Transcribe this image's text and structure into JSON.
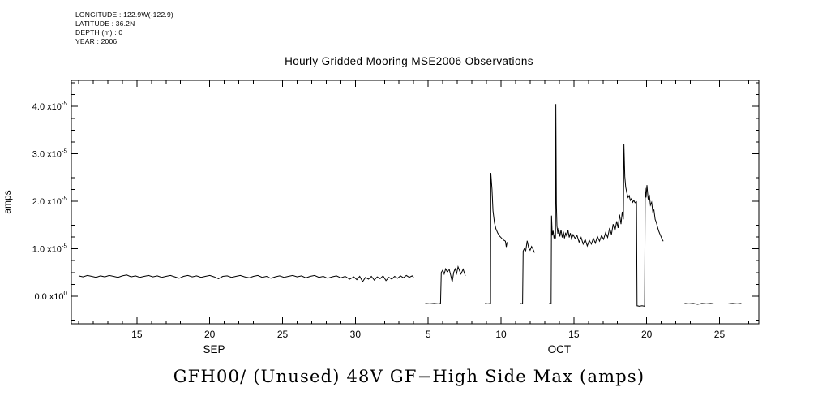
{
  "page": {
    "bg": "#ffffff",
    "fg": "#000000"
  },
  "meta": {
    "lines": [
      "LONGITUDE : 122.9W(-122.9)",
      "LATITUDE : 36.2N",
      "DEPTH (m) : 0",
      "YEAR : 2006"
    ]
  },
  "title": "Hourly Gridded Mooring MSE2006 Observations",
  "footer_title": "GFH00/ (Unused) 48V GF−High Side Max (amps)",
  "chart_data": {
    "type": "line",
    "title": "Hourly Gridded Mooring MSE2006 Observations",
    "subtitle": "GFH00/ (Unused) 48V GF-High Side Max (amps)",
    "xlabel": "",
    "ylabel": "amps",
    "color": "#000000",
    "grid": false,
    "legend": "none",
    "x_unit_note": "days since Sep 1 2006 (Sep N = N, Oct N = 30 + N)",
    "y_unit_note": "amps; stored values are in units of 1e-5 amps",
    "xlim": [
      10.5,
      57.7
    ],
    "ylim": [
      -0.58,
      4.55
    ],
    "x_minor_step": 1,
    "y_minor_step": 0.25,
    "x_major_ticks": [
      {
        "d": 15,
        "label": "15"
      },
      {
        "d": 20,
        "label": "20"
      },
      {
        "d": 25,
        "label": "25"
      },
      {
        "d": 30,
        "label": "30"
      },
      {
        "d": 35,
        "label": "5"
      },
      {
        "d": 40,
        "label": "10"
      },
      {
        "d": 45,
        "label": "15"
      },
      {
        "d": 50,
        "label": "20"
      },
      {
        "d": 55,
        "label": "25"
      }
    ],
    "months": [
      {
        "label": "SEP",
        "day": 20.3
      },
      {
        "label": "OCT",
        "day": 44.0
      }
    ],
    "y_major_ticks": [
      {
        "v": 0,
        "mant": "0.0",
        "exp": "0"
      },
      {
        "v": 1,
        "mant": "1.0",
        "exp": "-5"
      },
      {
        "v": 2,
        "mant": "2.0",
        "exp": "-5"
      },
      {
        "v": 3,
        "mant": "3.0",
        "exp": "-5"
      },
      {
        "v": 4,
        "mant": "4.0",
        "exp": "-5"
      }
    ],
    "segments": [
      [
        [
          11.0,
          0.43
        ],
        [
          11.3,
          0.41
        ],
        [
          11.6,
          0.44
        ],
        [
          11.9,
          0.42
        ],
        [
          12.2,
          0.4
        ],
        [
          12.5,
          0.43
        ],
        [
          12.8,
          0.41
        ],
        [
          13.1,
          0.44
        ],
        [
          13.4,
          0.42
        ],
        [
          13.7,
          0.4
        ],
        [
          14.0,
          0.43
        ],
        [
          14.3,
          0.45
        ],
        [
          14.6,
          0.41
        ],
        [
          14.9,
          0.43
        ],
        [
          15.2,
          0.4
        ],
        [
          15.5,
          0.42
        ],
        [
          15.8,
          0.44
        ],
        [
          16.1,
          0.41
        ],
        [
          16.4,
          0.43
        ],
        [
          16.7,
          0.4
        ],
        [
          17.0,
          0.42
        ],
        [
          17.3,
          0.44
        ],
        [
          17.6,
          0.41
        ],
        [
          17.9,
          0.38
        ],
        [
          18.2,
          0.42
        ],
        [
          18.5,
          0.44
        ],
        [
          18.8,
          0.41
        ],
        [
          19.1,
          0.43
        ],
        [
          19.4,
          0.4
        ],
        [
          19.7,
          0.42
        ],
        [
          20.0,
          0.44
        ],
        [
          20.3,
          0.41
        ],
        [
          20.6,
          0.37
        ],
        [
          20.9,
          0.42
        ],
        [
          21.2,
          0.43
        ],
        [
          21.5,
          0.4
        ],
        [
          21.8,
          0.42
        ],
        [
          22.1,
          0.44
        ],
        [
          22.4,
          0.41
        ],
        [
          22.7,
          0.39
        ],
        [
          23.0,
          0.42
        ],
        [
          23.3,
          0.44
        ],
        [
          23.6,
          0.4
        ],
        [
          23.9,
          0.42
        ],
        [
          24.2,
          0.38
        ],
        [
          24.5,
          0.41
        ],
        [
          24.8,
          0.43
        ],
        [
          25.1,
          0.4
        ],
        [
          25.4,
          0.42
        ],
        [
          25.7,
          0.44
        ],
        [
          26.0,
          0.41
        ],
        [
          26.3,
          0.43
        ],
        [
          26.6,
          0.39
        ],
        [
          26.9,
          0.42
        ],
        [
          27.2,
          0.44
        ],
        [
          27.5,
          0.4
        ],
        [
          27.8,
          0.42
        ],
        [
          28.1,
          0.38
        ],
        [
          28.4,
          0.41
        ],
        [
          28.7,
          0.43
        ],
        [
          29.0,
          0.39
        ],
        [
          29.3,
          0.42
        ],
        [
          29.6,
          0.36
        ],
        [
          29.9,
          0.41
        ],
        [
          30.1,
          0.35
        ],
        [
          30.3,
          0.42
        ],
        [
          30.5,
          0.31
        ],
        [
          30.7,
          0.4
        ],
        [
          30.9,
          0.36
        ],
        [
          31.1,
          0.42
        ],
        [
          31.3,
          0.34
        ],
        [
          31.5,
          0.41
        ],
        [
          31.7,
          0.37
        ],
        [
          31.9,
          0.43
        ],
        [
          32.1,
          0.33
        ],
        [
          32.3,
          0.4
        ],
        [
          32.5,
          0.36
        ],
        [
          32.7,
          0.42
        ],
        [
          32.9,
          0.38
        ],
        [
          33.1,
          0.43
        ],
        [
          33.3,
          0.39
        ],
        [
          33.5,
          0.44
        ],
        [
          33.7,
          0.4
        ],
        [
          33.9,
          0.43
        ],
        [
          34.0,
          0.4
        ]
      ],
      [
        [
          34.8,
          -0.15
        ],
        [
          35.1,
          -0.16
        ],
        [
          35.4,
          -0.15
        ],
        [
          35.7,
          -0.16
        ],
        [
          35.85,
          -0.15
        ],
        [
          35.9,
          0.5
        ],
        [
          36.0,
          0.55
        ],
        [
          36.1,
          0.47
        ],
        [
          36.2,
          0.58
        ],
        [
          36.3,
          0.52
        ],
        [
          36.45,
          0.56
        ],
        [
          36.55,
          0.44
        ],
        [
          36.65,
          0.3
        ],
        [
          36.75,
          0.5
        ],
        [
          36.85,
          0.58
        ],
        [
          36.95,
          0.48
        ],
        [
          37.05,
          0.62
        ],
        [
          37.15,
          0.54
        ],
        [
          37.25,
          0.47
        ],
        [
          37.4,
          0.57
        ],
        [
          37.55,
          0.43
        ]
      ],
      [
        [
          38.9,
          -0.15
        ],
        [
          39.1,
          -0.16
        ],
        [
          39.28,
          -0.15
        ],
        [
          39.3,
          2.6
        ],
        [
          39.38,
          2.25
        ],
        [
          39.45,
          1.8
        ],
        [
          39.55,
          1.55
        ],
        [
          39.65,
          1.42
        ],
        [
          39.78,
          1.33
        ],
        [
          39.9,
          1.27
        ],
        [
          40.05,
          1.22
        ],
        [
          40.2,
          1.18
        ],
        [
          40.3,
          1.16
        ],
        [
          40.36,
          1.04
        ],
        [
          40.42,
          1.14
        ]
      ],
      [
        [
          41.3,
          -0.15
        ],
        [
          41.48,
          -0.16
        ],
        [
          41.52,
          0.95
        ],
        [
          41.6,
          1.0
        ],
        [
          41.7,
          0.96
        ],
        [
          41.8,
          1.17
        ],
        [
          41.9,
          1.02
        ],
        [
          42.0,
          0.97
        ],
        [
          42.1,
          1.05
        ],
        [
          42.2,
          0.99
        ],
        [
          42.3,
          0.92
        ]
      ],
      [
        [
          43.3,
          -0.15
        ],
        [
          43.44,
          -0.16
        ],
        [
          43.47,
          1.7
        ],
        [
          43.52,
          1.28
        ],
        [
          43.58,
          1.38
        ],
        [
          43.64,
          1.22
        ],
        [
          43.7,
          1.3
        ],
        [
          43.74,
          1.22
        ],
        [
          43.76,
          4.05
        ],
        [
          43.8,
          1.95
        ],
        [
          43.84,
          1.48
        ],
        [
          43.9,
          1.32
        ],
        [
          43.96,
          1.44
        ],
        [
          44.04,
          1.26
        ],
        [
          44.12,
          1.4
        ],
        [
          44.2,
          1.24
        ],
        [
          44.28,
          1.36
        ],
        [
          44.36,
          1.22
        ],
        [
          44.44,
          1.34
        ],
        [
          44.52,
          1.26
        ],
        [
          44.6,
          1.4
        ],
        [
          44.68,
          1.24
        ],
        [
          44.76,
          1.33
        ],
        [
          44.84,
          1.21
        ],
        [
          44.95,
          1.3
        ],
        [
          45.08,
          1.22
        ],
        [
          45.22,
          1.28
        ],
        [
          45.36,
          1.14
        ],
        [
          45.5,
          1.24
        ],
        [
          45.64,
          1.1
        ],
        [
          45.78,
          1.2
        ],
        [
          45.92,
          1.06
        ],
        [
          46.06,
          1.18
        ],
        [
          46.2,
          1.1
        ],
        [
          46.34,
          1.22
        ],
        [
          46.48,
          1.12
        ],
        [
          46.62,
          1.26
        ],
        [
          46.76,
          1.16
        ],
        [
          46.9,
          1.28
        ],
        [
          47.04,
          1.2
        ],
        [
          47.18,
          1.34
        ],
        [
          47.32,
          1.24
        ],
        [
          47.46,
          1.44
        ],
        [
          47.58,
          1.3
        ],
        [
          47.7,
          1.52
        ],
        [
          47.82,
          1.38
        ],
        [
          47.94,
          1.58
        ],
        [
          48.04,
          1.44
        ],
        [
          48.14,
          1.72
        ],
        [
          48.24,
          1.52
        ],
        [
          48.32,
          1.78
        ],
        [
          48.4,
          1.62
        ],
        [
          48.44,
          3.2
        ],
        [
          48.5,
          2.52
        ],
        [
          48.56,
          2.3
        ],
        [
          48.64,
          2.18
        ],
        [
          48.72,
          2.08
        ],
        [
          48.8,
          2.12
        ],
        [
          48.88,
          2.02
        ],
        [
          48.96,
          2.06
        ],
        [
          49.04,
          1.98
        ],
        [
          49.12,
          2.02
        ],
        [
          49.2,
          1.97
        ],
        [
          49.3,
          1.99
        ],
        [
          49.34,
          -0.2
        ],
        [
          49.5,
          -0.21
        ],
        [
          49.68,
          -0.2
        ],
        [
          49.86,
          -0.21
        ],
        [
          49.9,
          2.28
        ],
        [
          49.96,
          2.08
        ],
        [
          50.02,
          2.34
        ],
        [
          50.1,
          2.04
        ],
        [
          50.18,
          2.14
        ],
        [
          50.26,
          1.92
        ],
        [
          50.34,
          1.98
        ],
        [
          50.42,
          1.78
        ],
        [
          50.5,
          1.82
        ],
        [
          50.58,
          1.62
        ],
        [
          50.66,
          1.56
        ],
        [
          50.74,
          1.46
        ],
        [
          50.82,
          1.38
        ],
        [
          50.9,
          1.32
        ],
        [
          50.98,
          1.26
        ],
        [
          51.06,
          1.2
        ],
        [
          51.14,
          1.16
        ]
      ],
      [
        [
          52.6,
          -0.15
        ],
        [
          52.9,
          -0.16
        ],
        [
          53.2,
          -0.15
        ],
        [
          53.5,
          -0.17
        ],
        [
          53.8,
          -0.15
        ],
        [
          54.1,
          -0.16
        ],
        [
          54.4,
          -0.15
        ],
        [
          54.6,
          -0.16
        ]
      ],
      [
        [
          55.6,
          -0.16
        ],
        [
          55.9,
          -0.15
        ],
        [
          56.2,
          -0.16
        ],
        [
          56.5,
          -0.15
        ]
      ]
    ]
  }
}
